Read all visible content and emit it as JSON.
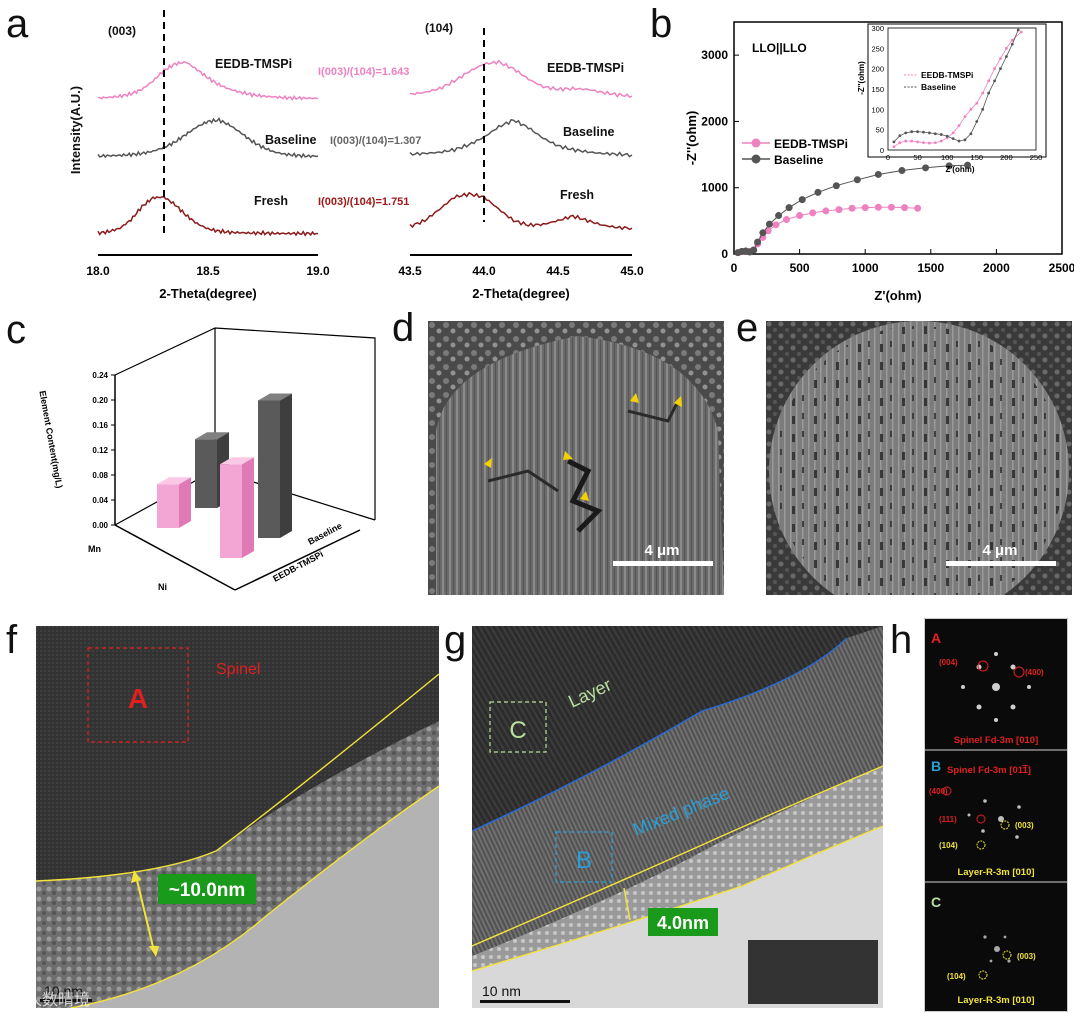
{
  "panels": {
    "a": "a",
    "b": "b",
    "c": "c",
    "d": "d",
    "e": "e",
    "f": "f",
    "g": "g",
    "h": "h"
  },
  "colors": {
    "eedb": "#ee82c0",
    "baseline": "#555555",
    "fresh": "#8b1a1a",
    "yellow": "#f2e33a",
    "blue": "#2a9fd6",
    "red": "#e02020",
    "green": "#b8e0a0",
    "label_green": "#1a9a1a"
  },
  "panel_a": {
    "left": {
      "tag": "(003)",
      "series_labels": [
        "EEDB-TMSPi",
        "Baseline",
        "Fresh"
      ],
      "ratio_eedb": "I(003)/(104)=1.643",
      "ratio_baseline": "I(003)/(104)=1.307",
      "ratio_fresh": "I(003)/(104)=1.751",
      "ticks": [
        "18.0",
        "18.5",
        "19.0"
      ],
      "xlabel": "2-Theta(degree)"
    },
    "right": {
      "tag": "(104)",
      "series_labels": [
        "EEDB-TMSPi",
        "Baseline",
        "Fresh"
      ],
      "ticks": [
        "43.5",
        "44.0",
        "44.5",
        "45.0"
      ],
      "xlabel": "2-Theta(degree)"
    },
    "ylabel": "Intensity(A.U.)"
  },
  "chart_data": [
    {
      "type": "line",
      "title": "(003)",
      "xlabel": "2-Theta(degree)",
      "ylabel": "Intensity(A.U.)",
      "xlim": [
        18.0,
        19.0
      ],
      "x": [
        18.0,
        18.05,
        18.1,
        18.15,
        18.2,
        18.25,
        18.3,
        18.35,
        18.4,
        18.45,
        18.5,
        18.55,
        18.6,
        18.65,
        18.7,
        18.75,
        18.8,
        18.85,
        18.9,
        18.95,
        19.0
      ],
      "series": [
        {
          "name": "EEDB-TMSPi",
          "values": [
            0.05,
            0.07,
            0.1,
            0.16,
            0.28,
            0.5,
            0.78,
            0.95,
            1.0,
            0.8,
            0.58,
            0.4,
            0.28,
            0.2,
            0.14,
            0.1,
            0.08,
            0.06,
            0.05,
            0.05,
            0.04
          ]
        },
        {
          "name": "Baseline",
          "values": [
            0.05,
            0.06,
            0.07,
            0.09,
            0.12,
            0.18,
            0.28,
            0.42,
            0.62,
            0.82,
            0.96,
            1.0,
            0.86,
            0.66,
            0.44,
            0.28,
            0.16,
            0.1,
            0.07,
            0.05,
            0.05
          ]
        },
        {
          "name": "Fresh",
          "values": [
            0.05,
            0.09,
            0.18,
            0.4,
            0.75,
            0.98,
            1.0,
            0.8,
            0.52,
            0.3,
            0.16,
            0.1,
            0.07,
            0.06,
            0.05,
            0.05,
            0.04,
            0.04,
            0.04,
            0.04,
            0.04
          ]
        }
      ]
    },
    {
      "type": "line",
      "title": "(104)",
      "xlabel": "2-Theta(degree)",
      "xlim": [
        43.5,
        45.0
      ],
      "x": [
        43.5,
        43.6,
        43.7,
        43.8,
        43.9,
        44.0,
        44.1,
        44.2,
        44.3,
        44.4,
        44.5,
        44.6,
        44.7,
        44.8,
        44.9,
        45.0
      ],
      "series": [
        {
          "name": "EEDB-TMSPi",
          "values": [
            0.15,
            0.2,
            0.3,
            0.5,
            0.75,
            0.95,
            1.0,
            0.82,
            0.55,
            0.35,
            0.28,
            0.3,
            0.28,
            0.2,
            0.14,
            0.1
          ]
        },
        {
          "name": "Baseline",
          "values": [
            0.1,
            0.12,
            0.15,
            0.22,
            0.35,
            0.55,
            0.82,
            1.0,
            0.8,
            0.52,
            0.32,
            0.22,
            0.16,
            0.12,
            0.1,
            0.08
          ]
        },
        {
          "name": "Fresh",
          "values": [
            0.15,
            0.3,
            0.6,
            0.92,
            1.0,
            0.92,
            0.6,
            0.3,
            0.18,
            0.2,
            0.3,
            0.42,
            0.3,
            0.18,
            0.12,
            0.1
          ]
        }
      ]
    },
    {
      "type": "scatter",
      "title": "LLO||LLO",
      "xlabel": "Z'(ohm)",
      "ylabel": "-Z''(ohm)",
      "xlim": [
        0,
        2500
      ],
      "ylim": [
        0,
        3500
      ],
      "xticks": [
        "0",
        "500",
        "1000",
        "1500",
        "2000",
        "2500"
      ],
      "yticks": [
        "0",
        "1000",
        "2000",
        "3000"
      ],
      "series": [
        {
          "name": "EEDB-TMSPi",
          "x": [
            30,
            60,
            90,
            120,
            150,
            180,
            220,
            260,
            320,
            400,
            500,
            600,
            700,
            800,
            900,
            1000,
            1100,
            1200,
            1300,
            1400
          ],
          "y": [
            20,
            35,
            45,
            40,
            60,
            150,
            250,
            350,
            440,
            520,
            580,
            620,
            650,
            670,
            690,
            700,
            705,
            705,
            700,
            690
          ]
        },
        {
          "name": "Baseline",
          "x": [
            30,
            60,
            90,
            120,
            150,
            180,
            220,
            270,
            340,
            420,
            520,
            640,
            780,
            940,
            1100,
            1280,
            1460,
            1640,
            1780
          ],
          "y": [
            20,
            40,
            45,
            30,
            60,
            180,
            320,
            450,
            580,
            700,
            820,
            930,
            1030,
            1120,
            1200,
            1260,
            1300,
            1330,
            1340
          ]
        }
      ],
      "inset": {
        "xlabel": "Z'(ohm)",
        "ylabel": "-Z''(ohm)",
        "xlim": [
          0,
          250
        ],
        "ylim": [
          0,
          300
        ],
        "xticks": [
          "0",
          "50",
          "100",
          "150",
          "200",
          "250"
        ],
        "yticks": [
          "0",
          "50",
          "100",
          "150",
          "200",
          "250",
          "300"
        ],
        "series": [
          {
            "name": "EEDB-TMSPi",
            "x": [
              10,
              20,
              30,
              40,
              50,
              60,
              70,
              80,
              90,
              100,
              110,
              120,
              130,
              140,
              150,
              160,
              170,
              180,
              190,
              200,
              210,
              225
            ],
            "y": [
              8,
              18,
              22,
              22,
              20,
              18,
              17,
              18,
              22,
              30,
              42,
              60,
              82,
              100,
              115,
              140,
              170,
              200,
              225,
              250,
              270,
              290
            ]
          },
          {
            "name": "Baseline",
            "x": [
              10,
              20,
              30,
              40,
              50,
              60,
              70,
              80,
              90,
              100,
              110,
              120,
              130,
              140,
              150,
              160,
              170,
              180,
              190,
              200,
              210,
              220
            ],
            "y": [
              20,
              35,
              42,
              45,
              45,
              44,
              42,
              40,
              38,
              34,
              28,
              22,
              25,
              40,
              70,
              100,
              140,
              170,
              200,
              230,
              260,
              295
            ]
          }
        ]
      }
    },
    {
      "type": "bar",
      "title": "",
      "ylabel": "Element Content(mg/L)",
      "ylim": [
        0,
        0.24
      ],
      "yticks": [
        "0.00",
        "0.04",
        "0.08",
        "0.12",
        "0.16",
        "0.20",
        "0.24"
      ],
      "categories": [
        "Mn",
        "Ni"
      ],
      "series": [
        {
          "name": "EEDB-TMSPi",
          "values": [
            0.07,
            0.15
          ]
        },
        {
          "name": "Baseline",
          "values": [
            0.11,
            0.22
          ]
        }
      ]
    }
  ],
  "panel_b": {
    "title": "LLO||LLO",
    "legend": [
      "EEDB-TMSPi",
      "Baseline"
    ],
    "inset_legend": [
      "EEDB-TMSPi",
      "Baseline"
    ]
  },
  "panel_c": {
    "ylabel": "Element Content(mg/L)",
    "cat_mn": "Mn",
    "cat_ni": "Ni",
    "series_baseline": "Baseline",
    "series_eedb": "EEDB-TMSPi"
  },
  "panel_d": {
    "scale": "4 μm"
  },
  "panel_e": {
    "scale": "4 μm"
  },
  "panel_f": {
    "spinel": "Spinel",
    "box_label": "A",
    "thickness": "~10.0nm",
    "scale": "10 nm"
  },
  "panel_g": {
    "layer": "Layer",
    "mixed": "Mixed phase",
    "box_c": "C",
    "box_b": "B",
    "thickness": "4.0nm",
    "scale": "10 nm"
  },
  "panel_h": {
    "A": {
      "label": "A",
      "spot1": "(004)",
      "spot2": "(400)",
      "caption": "Spinel Fd-3m [010]"
    },
    "B": {
      "label": "B",
      "title": "Spinel Fd-3m [01",
      "title_bar": "1",
      "title_end": "]",
      "spot1": "(400)",
      "spot2": "(111)",
      "spot3": "(003)",
      "spot4": "(104)",
      "caption": "Layer-R-3m [010]"
    },
    "C": {
      "label": "C",
      "spot1": "(003)",
      "spot2": "(104)",
      "caption": "Layer-R-3m [010]"
    }
  },
  "watermark": "人数晴境"
}
